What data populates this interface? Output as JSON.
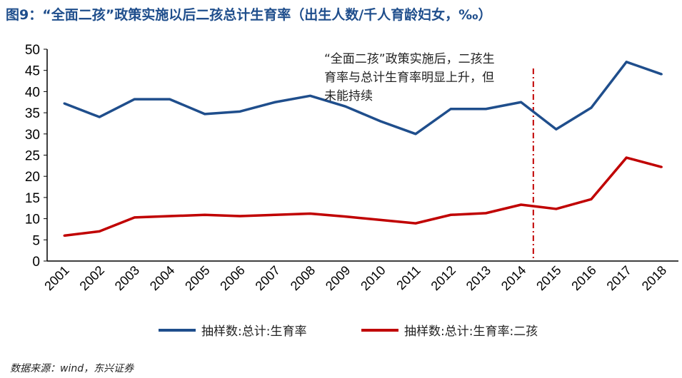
{
  "title": "图9：“全面二孩”政策实施以后二孩总计生育率（出生人数/千人育龄妇女，‰）",
  "source": "数据来源：wind，东兴证券",
  "chart_data": {
    "type": "line",
    "title": "图9：“全面二孩”政策实施以后二孩总计生育率（出生人数/千人育龄妇女，‰）",
    "categories": [
      "2001",
      "2002",
      "2003",
      "2004",
      "2005",
      "2006",
      "2007",
      "2008",
      "2009",
      "2010",
      "2011",
      "2012",
      "2013",
      "2014",
      "2015",
      "2016",
      "2017",
      "2018"
    ],
    "ylim": [
      0,
      50
    ],
    "yticks": [
      0,
      5,
      10,
      15,
      20,
      25,
      30,
      35,
      40,
      45,
      50
    ],
    "grid": false,
    "legend_position": "bottom",
    "series": [
      {
        "name": "抽样数:总计:生育率",
        "color": "#1f4e8c",
        "values": [
          37.2,
          34.0,
          38.2,
          38.2,
          34.7,
          35.3,
          37.5,
          39.0,
          36.5,
          33.0,
          30.0,
          35.9,
          35.9,
          37.5,
          31.1,
          36.2,
          47.0,
          44.1
        ]
      },
      {
        "name": "抽样数:总计:生育率:二孩",
        "color": "#c00000",
        "values": [
          6.0,
          7.0,
          10.3,
          10.6,
          10.9,
          10.6,
          10.9,
          11.2,
          10.5,
          9.7,
          8.9,
          10.9,
          11.3,
          13.3,
          12.3,
          14.6,
          24.4,
          22.2
        ]
      }
    ],
    "annotation": {
      "text": "“全面二孩”政策实施后，二孩生育率与总计生育率明显上升，但未能持续",
      "marker": "dash-dot vertical line between 2014 and 2015",
      "color": "#c00000"
    }
  }
}
